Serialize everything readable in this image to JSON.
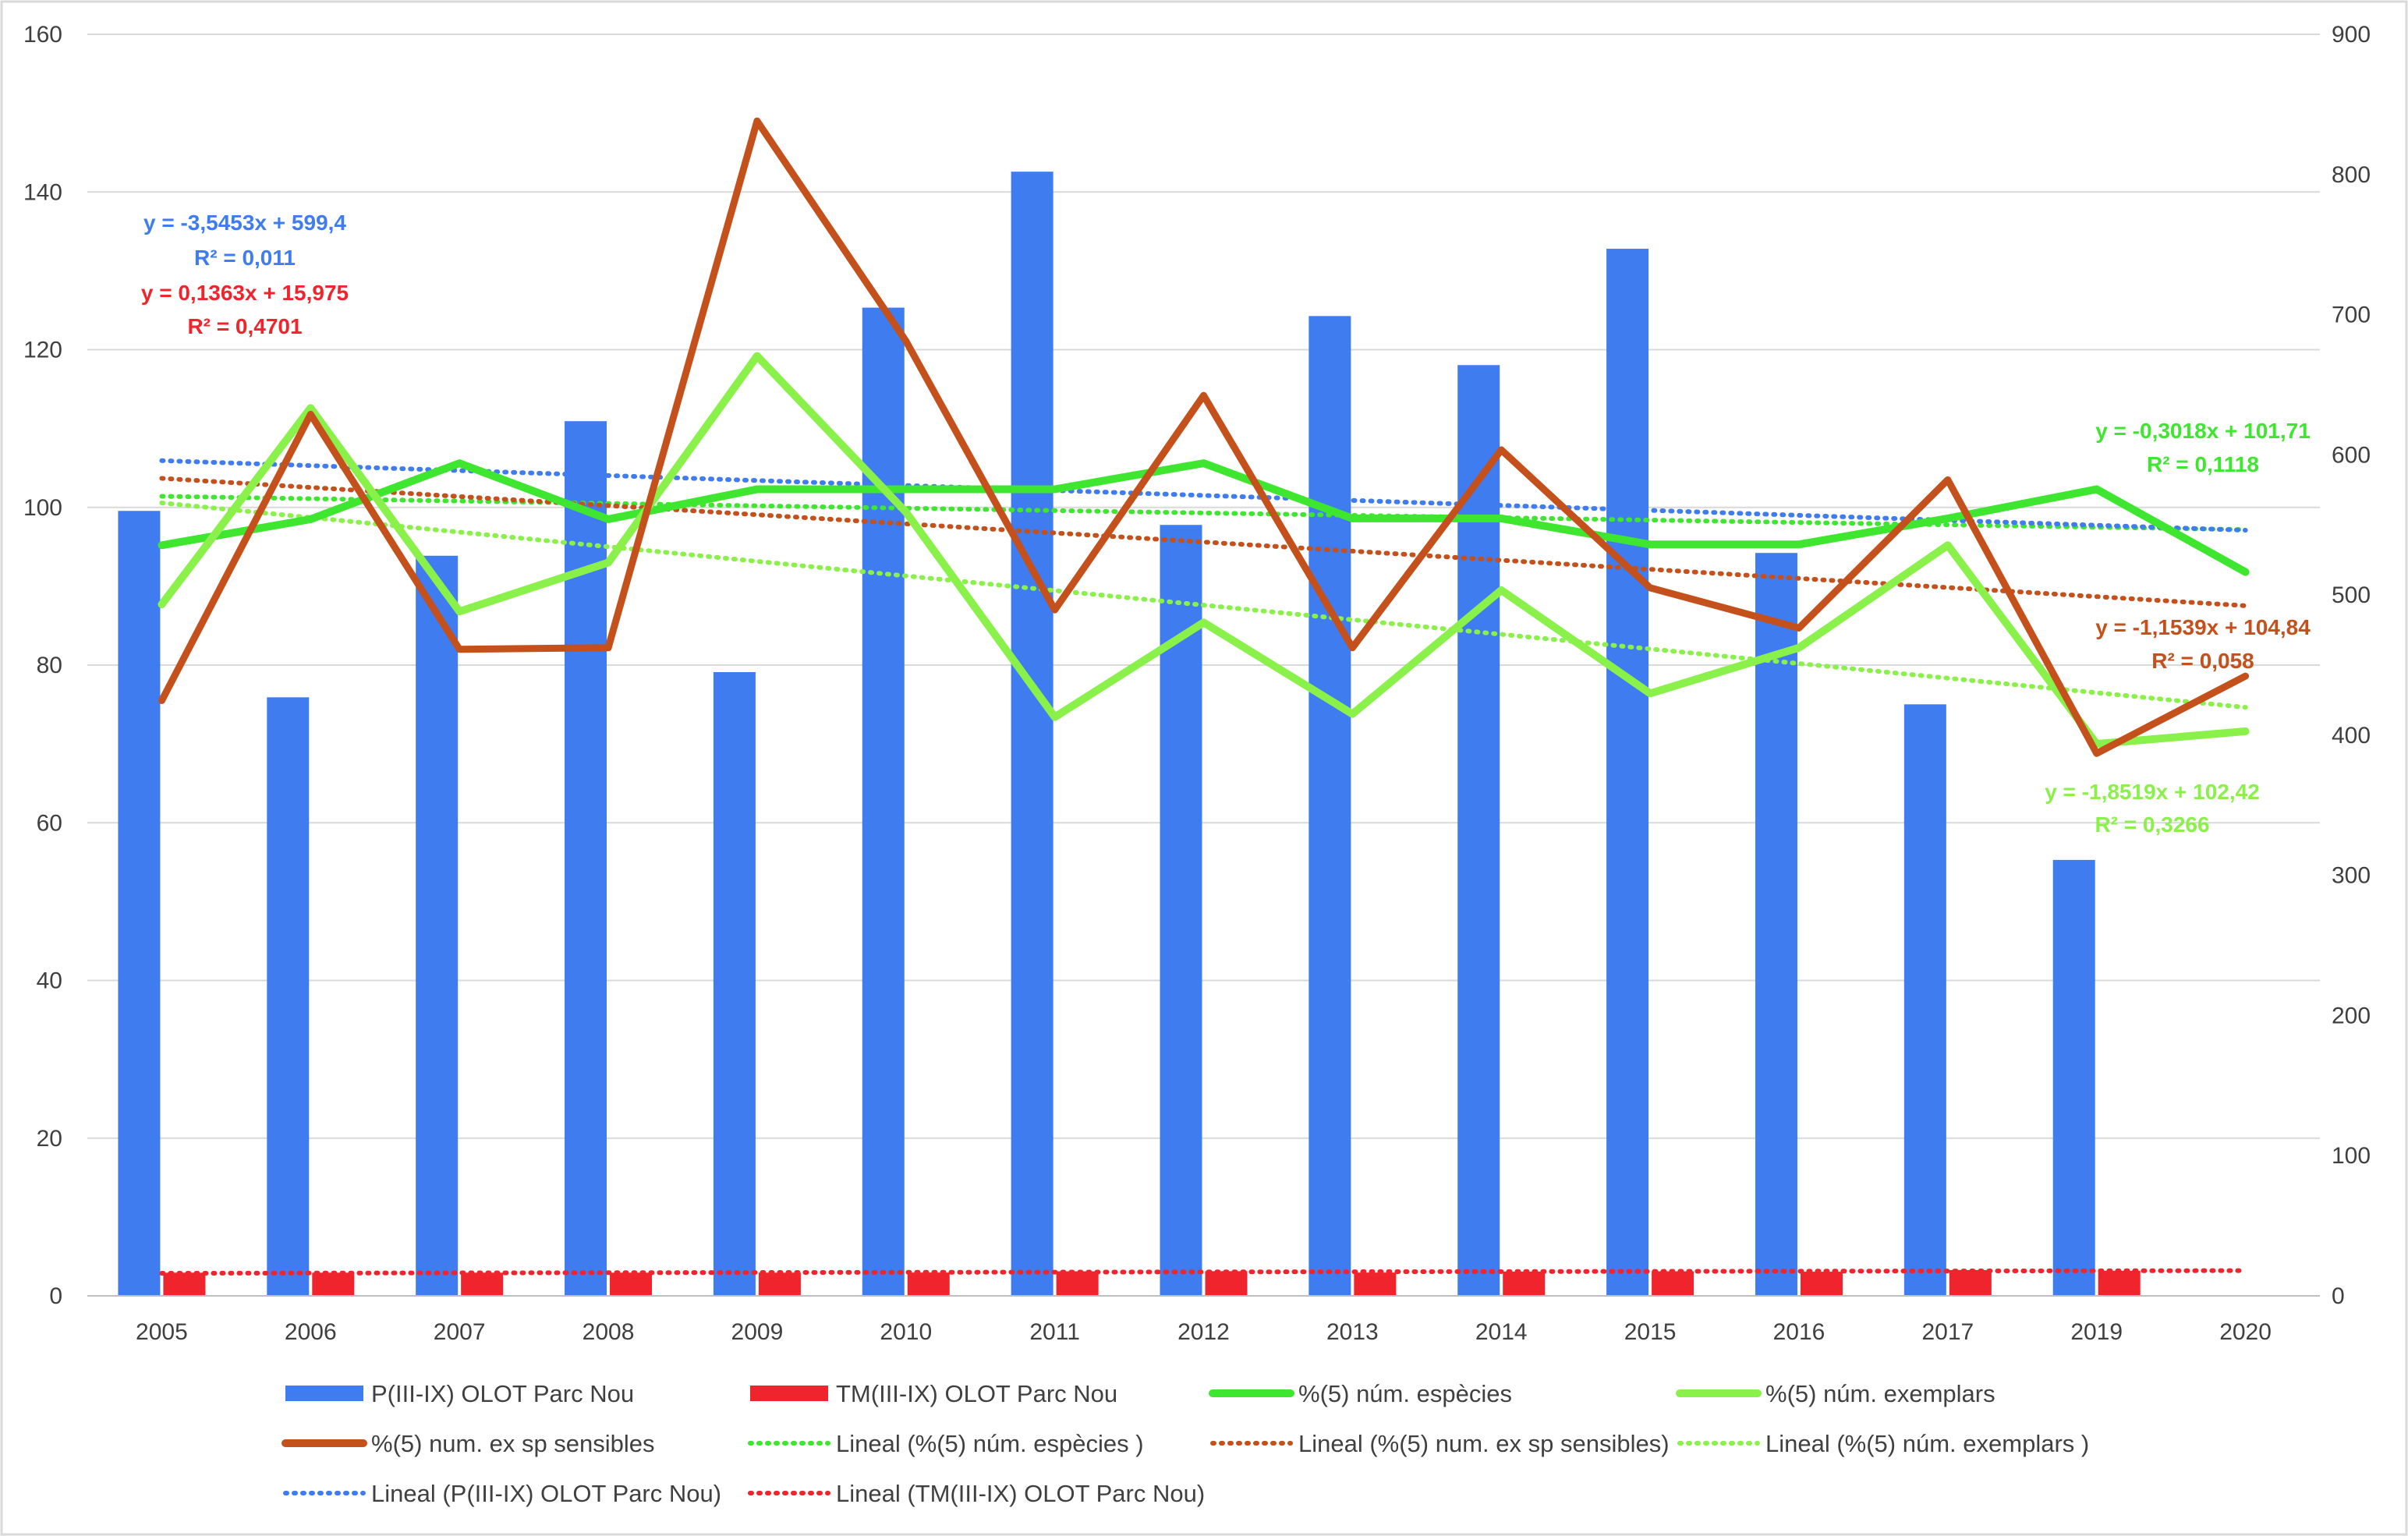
{
  "chart_data": {
    "type": "bar",
    "title": "",
    "xlabel": "",
    "ylabel": "",
    "categories": [
      "2005",
      "2006",
      "2007",
      "2008",
      "2009",
      "2010",
      "2011",
      "2012",
      "2013",
      "2014",
      "2015",
      "2016",
      "2017",
      "2019",
      "2020"
    ],
    "y_left": {
      "min": 0,
      "max": 160,
      "ticks": [
        0,
        20,
        40,
        60,
        80,
        100,
        120,
        140,
        160
      ]
    },
    "y_right": {
      "min": 0,
      "max": 900,
      "ticks": [
        0,
        100,
        200,
        300,
        400,
        500,
        600,
        700,
        800,
        900
      ]
    },
    "grid": "horizontal",
    "legend_position": "bottom",
    "series": [
      {
        "name": "P(III-IX) OLOT Parc Nou",
        "kind": "bar",
        "axis": "right",
        "color": "#3e7cf0",
        "values": [
          560,
          427,
          528,
          624,
          445,
          705,
          802,
          550,
          699,
          664,
          747,
          530,
          422,
          311,
          null
        ]
      },
      {
        "name": "TM(III-IX) OLOT Parc Nou",
        "kind": "bar",
        "axis": "right",
        "color": "#f0242c",
        "values": [
          16.5,
          16.5,
          16.5,
          16.5,
          16.5,
          16.6,
          17.5,
          17.6,
          16.6,
          17.3,
          17.5,
          17.2,
          18.4,
          17.9,
          null
        ]
      },
      {
        "name": "%(5) núm. espècies",
        "kind": "line",
        "axis": "left",
        "color": "#3ee630",
        "width": 10,
        "values": [
          95.2,
          98.5,
          105.6,
          98.5,
          102.3,
          102.3,
          102.3,
          105.6,
          98.6,
          98.6,
          95.3,
          95.3,
          98.6,
          102.3,
          91.8
        ]
      },
      {
        "name": "%(5) núm.  exemplars",
        "kind": "line",
        "axis": "left",
        "color": "#8af04a",
        "width": 10,
        "values": [
          87.7,
          112.6,
          86.8,
          93.0,
          119.2,
          99.4,
          73.4,
          85.4,
          73.8,
          89.5,
          76.4,
          82.2,
          95.2,
          70.0,
          71.6
        ]
      },
      {
        "name": "%(5) num. ex sp sensibles",
        "kind": "line",
        "axis": "left",
        "color": "#c4501c",
        "width": 9,
        "values": [
          75.5,
          111.8,
          82.0,
          82.2,
          149.0,
          121.1,
          87.0,
          114.2,
          82.2,
          107.3,
          89.8,
          84.7,
          103.5,
          68.8,
          78.6
        ]
      }
    ],
    "trendlines": [
      {
        "name": "Lineal (%(5) núm. espècies )",
        "series": "%(5) núm. espècies",
        "color": "#3ee630",
        "slope": -0.3018,
        "intercept": 101.71,
        "axis": "left"
      },
      {
        "name": "Lineal (%(5) num. ex sp sensibles)",
        "series": "%(5) num. ex sp sensibles",
        "color": "#c4501c",
        "slope": -1.1539,
        "intercept": 104.84,
        "axis": "left"
      },
      {
        "name": "Lineal (%(5) núm.  exemplars )",
        "series": "%(5) núm.  exemplars",
        "color": "#8af04a",
        "slope": -1.8519,
        "intercept": 102.42,
        "axis": "left"
      },
      {
        "name": "Lineal (P(III-IX) OLOT Parc Nou)",
        "series": "P(III-IX) OLOT Parc Nou",
        "color": "#3e7cf0",
        "slope": -3.5453,
        "intercept": 599.4,
        "axis": "right"
      },
      {
        "name": "Lineal (TM(III-IX) OLOT Parc Nou)",
        "series": "TM(III-IX) OLOT Parc Nou",
        "color": "#f0242c",
        "slope": 0.1363,
        "intercept": 15.975,
        "axis": "right"
      }
    ],
    "annotations": [
      {
        "id": "p",
        "color": "#3e7cf0",
        "eq": "y = -3,5453x + 599,4",
        "r2": "R² = 0,011"
      },
      {
        "id": "tm",
        "color": "#f0242c",
        "eq": "y = 0,1363x + 15,975",
        "r2": "R² = 0,4701"
      },
      {
        "id": "esp",
        "color": "#3ee630",
        "eq": "y = -0,3018x + 101,71",
        "r2": "R² = 0,1118"
      },
      {
        "id": "sens",
        "color": "#c4501c",
        "eq": "y = -1,1539x + 104,84",
        "r2": "R² = 0,058"
      },
      {
        "id": "exe",
        "color": "#8af04a",
        "eq": "y = -1,8519x + 102,42",
        "r2": "R² = 0,3266"
      }
    ],
    "legend": [
      {
        "label": "P(III-IX) OLOT Parc Nou",
        "style": "bar",
        "color": "#3e7cf0"
      },
      {
        "label": "TM(III-IX) OLOT Parc Nou",
        "style": "bar",
        "color": "#f0242c"
      },
      {
        "label": "%(5) núm. espècies",
        "style": "line",
        "color": "#3ee630"
      },
      {
        "label": "%(5) núm.  exemplars",
        "style": "line",
        "color": "#8af04a"
      },
      {
        "label": "%(5) num. ex sp sensibles",
        "style": "line",
        "color": "#c4501c"
      },
      {
        "label": "Lineal (%(5) núm. espècies )",
        "style": "dotted",
        "color": "#3ee630"
      },
      {
        "label": "Lineal (%(5) num. ex sp sensibles)",
        "style": "dotted",
        "color": "#c4501c"
      },
      {
        "label": "Lineal (%(5) núm.  exemplars )",
        "style": "dotted",
        "color": "#8af04a"
      },
      {
        "label": "Lineal (P(III-IX) OLOT Parc Nou)",
        "style": "dotted",
        "color": "#3e7cf0"
      },
      {
        "label": "Lineal (TM(III-IX) OLOT Parc Nou)",
        "style": "dotted",
        "color": "#f0242c"
      }
    ]
  }
}
